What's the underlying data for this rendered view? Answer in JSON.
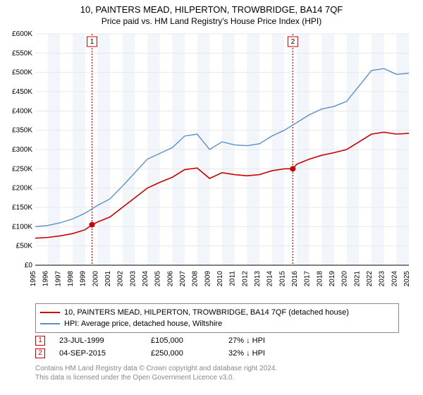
{
  "title": "10, PAINTERS MEAD, HILPERTON, TROWBRIDGE, BA14 7QF",
  "subtitle": "Price paid vs. HM Land Registry's House Price Index (HPI)",
  "chart": {
    "type": "line",
    "background_color": "#ffffff",
    "shade_color": "#f2f6fa",
    "grid_color": "#e8e8e8",
    "x": {
      "min": 1995,
      "max": 2025,
      "ticks": [
        1995,
        1996,
        1997,
        1998,
        1999,
        2000,
        2001,
        2002,
        2003,
        2004,
        2005,
        2006,
        2007,
        2008,
        2009,
        2010,
        2011,
        2012,
        2013,
        2014,
        2015,
        2016,
        2017,
        2018,
        2019,
        2020,
        2021,
        2022,
        2023,
        2024,
        2025
      ],
      "shaded_year_pairs": [
        [
          1996,
          1997
        ],
        [
          1998,
          1999
        ],
        [
          2000,
          2001
        ],
        [
          2002,
          2003
        ],
        [
          2004,
          2005
        ],
        [
          2006,
          2007
        ],
        [
          2008,
          2009
        ],
        [
          2010,
          2011
        ],
        [
          2012,
          2013
        ],
        [
          2014,
          2015
        ],
        [
          2016,
          2017
        ],
        [
          2018,
          2019
        ],
        [
          2020,
          2021
        ],
        [
          2022,
          2023
        ],
        [
          2024,
          2025
        ]
      ]
    },
    "y": {
      "min": 0,
      "max": 600000,
      "ticks": [
        0,
        50000,
        100000,
        150000,
        200000,
        250000,
        300000,
        350000,
        400000,
        450000,
        500000,
        550000,
        600000
      ],
      "tick_labels": [
        "£0",
        "£50K",
        "£100K",
        "£150K",
        "£200K",
        "£250K",
        "£300K",
        "£350K",
        "£400K",
        "£450K",
        "£500K",
        "£550K",
        "£600K"
      ]
    },
    "series": [
      {
        "id": "price_paid",
        "label": "10, PAINTERS MEAD, HILPERTON, TROWBRIDGE, BA14 7QF (detached house)",
        "color": "#cc0000",
        "line_width": 1.6,
        "points": [
          [
            1995,
            70000
          ],
          [
            1996,
            72000
          ],
          [
            1997,
            76000
          ],
          [
            1998,
            82000
          ],
          [
            1999,
            92000
          ],
          [
            1999.56,
            105000
          ],
          [
            2000,
            112000
          ],
          [
            2001,
            125000
          ],
          [
            2002,
            150000
          ],
          [
            2003,
            175000
          ],
          [
            2004,
            200000
          ],
          [
            2005,
            215000
          ],
          [
            2006,
            228000
          ],
          [
            2007,
            248000
          ],
          [
            2008,
            252000
          ],
          [
            2009,
            225000
          ],
          [
            2010,
            240000
          ],
          [
            2011,
            235000
          ],
          [
            2012,
            232000
          ],
          [
            2013,
            235000
          ],
          [
            2014,
            245000
          ],
          [
            2015,
            250000
          ],
          [
            2015.68,
            250000
          ],
          [
            2016,
            262000
          ],
          [
            2017,
            275000
          ],
          [
            2018,
            285000
          ],
          [
            2019,
            292000
          ],
          [
            2020,
            300000
          ],
          [
            2021,
            320000
          ],
          [
            2022,
            340000
          ],
          [
            2023,
            345000
          ],
          [
            2024,
            340000
          ],
          [
            2025,
            342000
          ]
        ]
      },
      {
        "id": "hpi",
        "label": "HPI: Average price, detached house, Wiltshire",
        "color": "#5b8fc7",
        "line_width": 1.4,
        "points": [
          [
            1995,
            100000
          ],
          [
            1996,
            103000
          ],
          [
            1997,
            110000
          ],
          [
            1998,
            120000
          ],
          [
            1999,
            135000
          ],
          [
            2000,
            155000
          ],
          [
            2001,
            172000
          ],
          [
            2002,
            205000
          ],
          [
            2003,
            240000
          ],
          [
            2004,
            275000
          ],
          [
            2005,
            290000
          ],
          [
            2006,
            305000
          ],
          [
            2007,
            335000
          ],
          [
            2008,
            340000
          ],
          [
            2009,
            300000
          ],
          [
            2010,
            320000
          ],
          [
            2011,
            312000
          ],
          [
            2012,
            310000
          ],
          [
            2013,
            315000
          ],
          [
            2014,
            335000
          ],
          [
            2015,
            350000
          ],
          [
            2016,
            370000
          ],
          [
            2017,
            390000
          ],
          [
            2018,
            405000
          ],
          [
            2019,
            412000
          ],
          [
            2020,
            425000
          ],
          [
            2021,
            465000
          ],
          [
            2022,
            505000
          ],
          [
            2023,
            510000
          ],
          [
            2024,
            495000
          ],
          [
            2025,
            498000
          ]
        ]
      }
    ],
    "events": [
      {
        "n": 1,
        "year": 1999.56,
        "price": 105000,
        "color": "#cc0000"
      },
      {
        "n": 2,
        "year": 2015.68,
        "price": 250000,
        "color": "#cc0000"
      }
    ],
    "axis_fontsize": 10
  },
  "legend": {
    "items": [
      {
        "color": "#cc0000",
        "label": "10, PAINTERS MEAD, HILPERTON, TROWBRIDGE, BA14 7QF (detached house)"
      },
      {
        "color": "#5b8fc7",
        "label": "HPI: Average price, detached house, Wiltshire"
      }
    ]
  },
  "data_rows": [
    {
      "n": "1",
      "color": "#cc0000",
      "date": "23-JUL-1999",
      "price": "£105,000",
      "hpi": "27% ↓ HPI"
    },
    {
      "n": "2",
      "color": "#cc0000",
      "date": "04-SEP-2015",
      "price": "£250,000",
      "hpi": "32% ↓ HPI"
    }
  ],
  "footer": {
    "line1": "Contains HM Land Registry data © Crown copyright and database right 2024.",
    "line2": "This data is licensed under the Open Government Licence v3.0."
  }
}
